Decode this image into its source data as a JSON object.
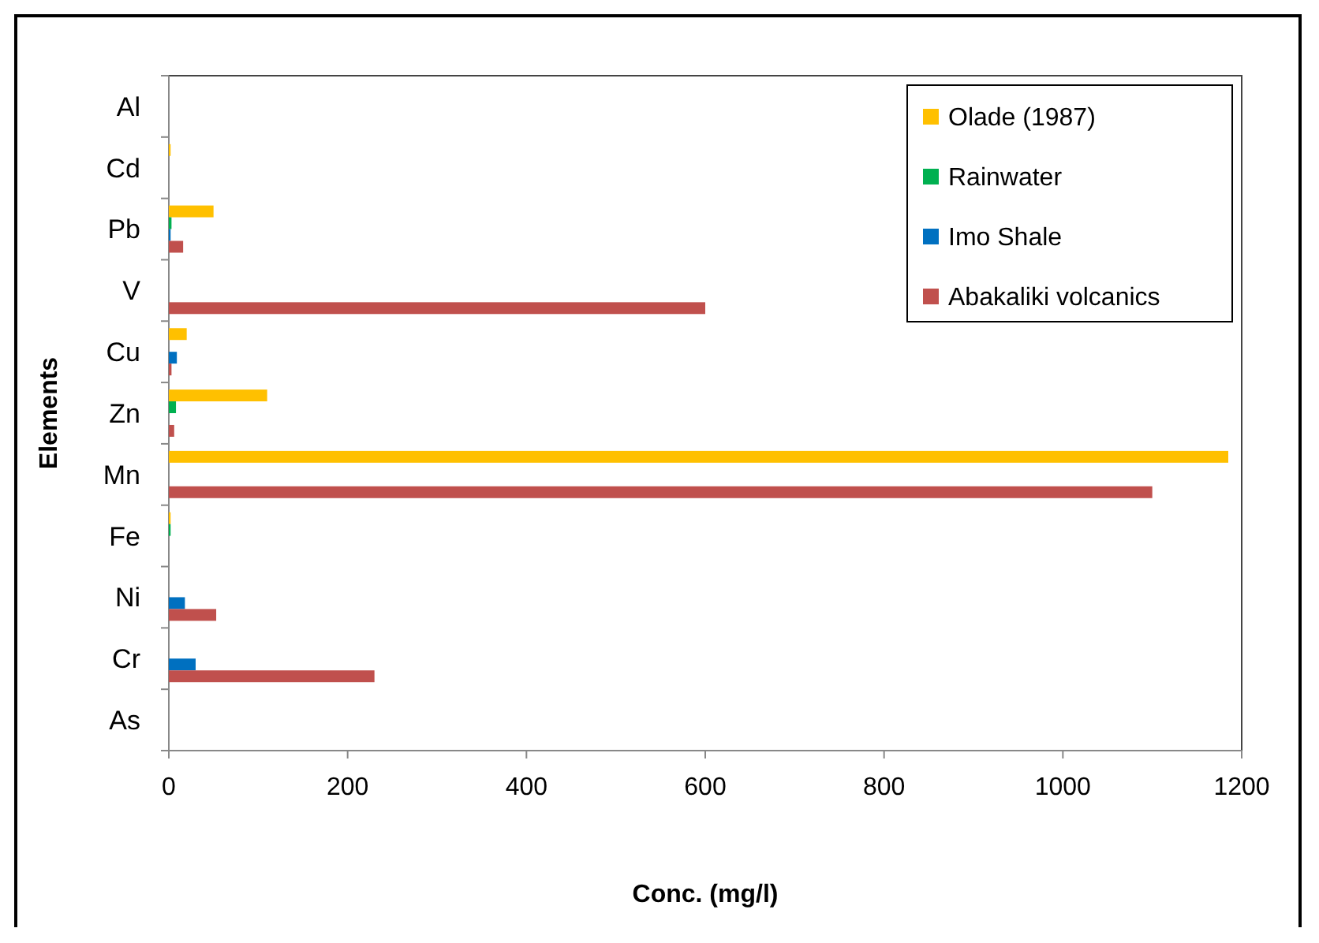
{
  "chart_data": {
    "type": "bar",
    "orientation": "horizontal",
    "xlabel": "Conc. (mg/l)",
    "ylabel": "Elements",
    "categories": [
      "Al",
      "Cd",
      "Pb",
      "V",
      "Cu",
      "Zn",
      "Mn",
      "Fe",
      "Ni",
      "Cr",
      "As"
    ],
    "series": [
      {
        "name": "Olade (1987)",
        "color": "#ffc000",
        "values": [
          0,
          2,
          50,
          0,
          20,
          110,
          1185,
          2,
          0,
          0,
          0
        ]
      },
      {
        "name": "Rainwater",
        "color": "#00b050",
        "values": [
          0,
          0,
          3,
          0,
          0,
          8,
          0,
          2,
          0,
          0,
          0
        ]
      },
      {
        "name": "Imo Shale",
        "color": "#0070c0",
        "values": [
          0,
          0,
          2,
          0,
          9,
          0,
          0,
          0,
          18,
          30,
          0
        ]
      },
      {
        "name": "Abakaliki volcanics",
        "color": "#c0504d",
        "values": [
          0,
          0,
          16,
          600,
          3,
          6,
          1100,
          0,
          53,
          230,
          0
        ]
      }
    ],
    "xlim": [
      0,
      1200
    ],
    "xticks": [
      0,
      200,
      400,
      600,
      800,
      1000,
      1200
    ],
    "legend": "top right",
    "grid": false
  }
}
